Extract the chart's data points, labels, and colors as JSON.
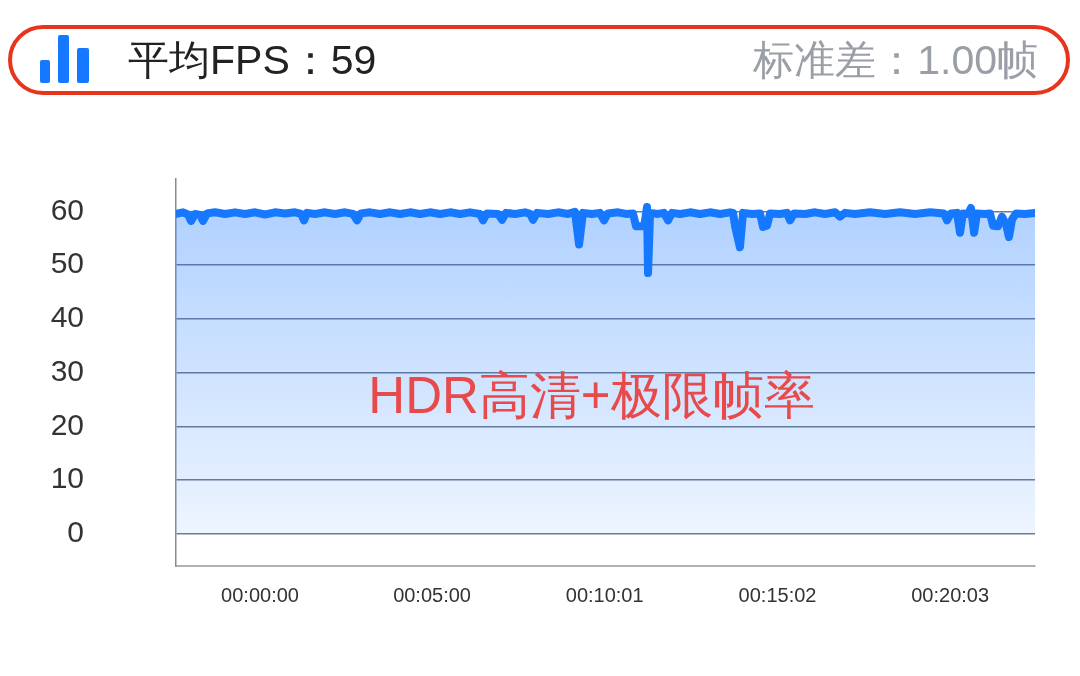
{
  "chart_data": {
    "type": "area",
    "title": "平均FPS：59",
    "subtitle": "标准差：1.00帧",
    "annotations": [
      "HDR高清+极限帧率"
    ],
    "x": [
      -0.0407,
      -0.0373,
      -0.0349,
      -0.0334,
      -0.0315,
      -0.0291,
      -0.0276,
      -0.0257,
      -0.0218,
      -0.0169,
      -0.0121,
      -0.0073,
      -0.0024,
      0.0024,
      0.0073,
      0.0121,
      0.0169,
      0.0199,
      0.0213,
      0.0228,
      0.0266,
      0.0315,
      0.0363,
      0.0412,
      0.045,
      0.047,
      0.0489,
      0.0533,
      0.0581,
      0.063,
      0.0678,
      0.0726,
      0.0775,
      0.0823,
      0.0872,
      0.092,
      0.0969,
      0.1017,
      0.1065,
      0.108,
      0.1099,
      0.1153,
      0.1172,
      0.1191,
      0.1235,
      0.1283,
      0.1308,
      0.1322,
      0.1341,
      0.1395,
      0.1443,
      0.1492,
      0.1525,
      0.1545,
      0.1564,
      0.1608,
      0.1646,
      0.1666,
      0.1685,
      0.1734,
      0.1772,
      0.1806,
      0.1821,
      0.186,
      0.1874,
      0.1879,
      0.1889,
      0.1927,
      0.1956,
      0.1976,
      0.1995,
      0.2034,
      0.2082,
      0.2131,
      0.2179,
      0.2228,
      0.2276,
      0.2291,
      0.23,
      0.2324,
      0.2339,
      0.2383,
      0.2421,
      0.2436,
      0.2455,
      0.247,
      0.2518,
      0.2552,
      0.2567,
      0.2586,
      0.2639,
      0.2688,
      0.2736,
      0.2785,
      0.2809,
      0.2833,
      0.2881,
      0.2954,
      0.3027,
      0.3099,
      0.3172,
      0.3245,
      0.3312,
      0.3327,
      0.3346,
      0.3375,
      0.339,
      0.3404,
      0.3429,
      0.3443,
      0.3458,
      0.3472,
      0.3511,
      0.3535,
      0.355,
      0.3574,
      0.3593,
      0.3613,
      0.3627,
      0.3642,
      0.3661,
      0.3705,
      0.3753
    ],
    "values": [
      59.5,
      59.8,
      59.4,
      58.2,
      59.5,
      59.3,
      58.2,
      59.6,
      59.8,
      59.5,
      59.8,
      59.5,
      59.8,
      59.4,
      59.8,
      59.6,
      59.8,
      59.5,
      58.3,
      59.7,
      59.5,
      59.8,
      59.5,
      59.8,
      59.5,
      58.3,
      59.6,
      59.8,
      59.5,
      59.8,
      59.5,
      59.8,
      59.5,
      59.8,
      59.5,
      59.8,
      59.5,
      59.8,
      59.5,
      58.3,
      59.6,
      59.5,
      58.4,
      59.7,
      59.5,
      59.8,
      59.5,
      58.4,
      59.7,
      59.5,
      59.8,
      59.5,
      59.9,
      53.8,
      59.7,
      59.5,
      59.7,
      58.3,
      59.6,
      59.8,
      59.5,
      59.6,
      57.2,
      57.2,
      60.8,
      48.5,
      59.7,
      59.5,
      59.7,
      58.3,
      59.7,
      59.5,
      59.8,
      59.5,
      59.8,
      59.5,
      59.8,
      59.7,
      57.3,
      53.3,
      59.7,
      59.5,
      59.6,
      57.1,
      57.3,
      59.6,
      59.5,
      59.7,
      58.3,
      59.6,
      59.5,
      59.8,
      59.5,
      59.8,
      59.0,
      59.7,
      59.5,
      59.8,
      59.5,
      59.8,
      59.5,
      59.8,
      59.6,
      58.3,
      59.6,
      59.7,
      56.0,
      59.6,
      59.5,
      60.6,
      56.0,
      59.6,
      59.5,
      59.6,
      57.3,
      57.2,
      59.0,
      57.5,
      55.2,
      58.5,
      59.6,
      59.5,
      59.7
    ],
    "color": "#1677ff",
    "xlim": [
      -0.0407,
      0.3753
    ],
    "xticks": [
      {
        "value": 0,
        "label": "00:00:00"
      },
      {
        "value": 0.0833,
        "label": "00:05:00"
      },
      {
        "value": 0.1669,
        "label": "00:10:01"
      },
      {
        "value": 0.2506,
        "label": "00:15:02"
      },
      {
        "value": 0.3342,
        "label": "00:20:03"
      }
    ],
    "ylim": [
      -6,
      66
    ],
    "yticks": [
      0,
      10,
      20,
      30,
      40,
      50,
      60
    ],
    "grid": "y",
    "marker": "none",
    "line_style": "solid"
  }
}
